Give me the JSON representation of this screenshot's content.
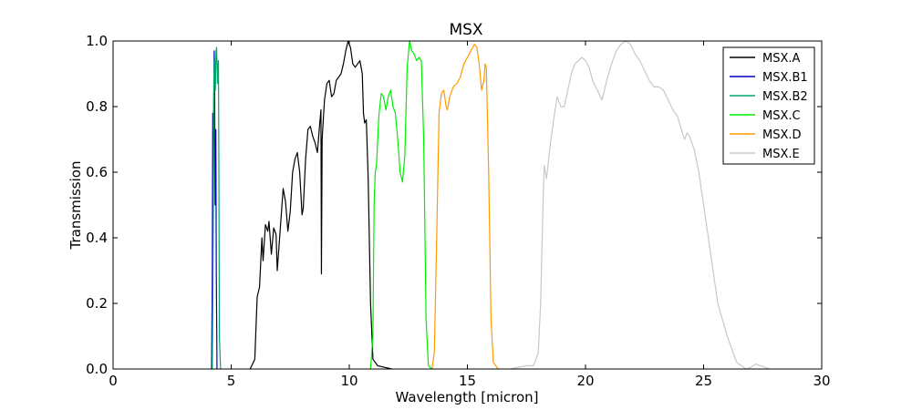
{
  "chart_data": {
    "type": "line",
    "title": "MSX",
    "xlabel": "Wavelength [micron]",
    "ylabel": "Transmission",
    "xlim": [
      0,
      30
    ],
    "ylim": [
      0,
      1.0
    ],
    "x_ticks": [
      0,
      5,
      10,
      15,
      20,
      25,
      30
    ],
    "y_ticks": [
      0.0,
      0.2,
      0.4,
      0.6,
      0.8,
      1.0
    ],
    "x_tick_labels": [
      "0",
      "5",
      "10",
      "15",
      "20",
      "25",
      "30"
    ],
    "y_tick_labels": [
      "0.0",
      "0.2",
      "0.4",
      "0.6",
      "0.8",
      "1.0"
    ],
    "grid": false,
    "legend_position": "top-right",
    "series": [
      {
        "name": "MSX.A",
        "color": "#000000",
        "points": [
          [
            5.8,
            0
          ],
          [
            6.0,
            0.03
          ],
          [
            6.1,
            0.22
          ],
          [
            6.2,
            0.25
          ],
          [
            6.3,
            0.4
          ],
          [
            6.35,
            0.33
          ],
          [
            6.45,
            0.44
          ],
          [
            6.55,
            0.42
          ],
          [
            6.6,
            0.45
          ],
          [
            6.7,
            0.35
          ],
          [
            6.8,
            0.43
          ],
          [
            6.9,
            0.41
          ],
          [
            6.95,
            0.3
          ],
          [
            7.05,
            0.4
          ],
          [
            7.15,
            0.5
          ],
          [
            7.2,
            0.55
          ],
          [
            7.3,
            0.51
          ],
          [
            7.4,
            0.42
          ],
          [
            7.5,
            0.48
          ],
          [
            7.6,
            0.6
          ],
          [
            7.7,
            0.64
          ],
          [
            7.8,
            0.66
          ],
          [
            7.9,
            0.6
          ],
          [
            8.0,
            0.47
          ],
          [
            8.05,
            0.49
          ],
          [
            8.15,
            0.64
          ],
          [
            8.25,
            0.73
          ],
          [
            8.35,
            0.74
          ],
          [
            8.45,
            0.71
          ],
          [
            8.55,
            0.69
          ],
          [
            8.65,
            0.66
          ],
          [
            8.75,
            0.75
          ],
          [
            8.8,
            0.79
          ],
          [
            8.82,
            0.29
          ],
          [
            8.85,
            0.7
          ],
          [
            8.95,
            0.82
          ],
          [
            9.05,
            0.87
          ],
          [
            9.15,
            0.88
          ],
          [
            9.25,
            0.83
          ],
          [
            9.35,
            0.84
          ],
          [
            9.45,
            0.88
          ],
          [
            9.55,
            0.89
          ],
          [
            9.65,
            0.9
          ],
          [
            9.75,
            0.93
          ],
          [
            9.85,
            0.97
          ],
          [
            9.95,
            1.0
          ],
          [
            10.05,
            0.98
          ],
          [
            10.15,
            0.93
          ],
          [
            10.25,
            0.92
          ],
          [
            10.35,
            0.93
          ],
          [
            10.45,
            0.94
          ],
          [
            10.55,
            0.9
          ],
          [
            10.6,
            0.78
          ],
          [
            10.65,
            0.75
          ],
          [
            10.72,
            0.76
          ],
          [
            10.8,
            0.58
          ],
          [
            10.9,
            0.2
          ],
          [
            11.0,
            0.03
          ],
          [
            11.2,
            0.01
          ],
          [
            11.8,
            0
          ]
        ]
      },
      {
        "name": "MSX.B1",
        "color": "#0000bf",
        "points": [
          [
            4.17,
            0
          ],
          [
            4.2,
            0.3
          ],
          [
            4.22,
            0.78
          ],
          [
            4.24,
            0.55
          ],
          [
            4.26,
            0.8
          ],
          [
            4.28,
            0.97
          ],
          [
            4.3,
            0.85
          ],
          [
            4.32,
            0.5
          ],
          [
            4.33,
            0.67
          ],
          [
            4.35,
            0.73
          ],
          [
            4.37,
            0.3
          ],
          [
            4.4,
            0
          ]
        ]
      },
      {
        "name": "MSX.B2",
        "color": "#00a86b",
        "points": [
          [
            4.2,
            0
          ],
          [
            4.24,
            0.4
          ],
          [
            4.27,
            0.9
          ],
          [
            4.3,
            0.95
          ],
          [
            4.33,
            0.85
          ],
          [
            4.36,
            0.97
          ],
          [
            4.38,
            0.98
          ],
          [
            4.4,
            0.94
          ],
          [
            4.42,
            0.87
          ],
          [
            4.44,
            0.92
          ],
          [
            4.46,
            0.94
          ],
          [
            4.48,
            0.6
          ],
          [
            4.5,
            0.1
          ],
          [
            4.55,
            0
          ]
        ]
      },
      {
        "name": "MSX.C",
        "color": "#00ee00",
        "points": [
          [
            10.9,
            0
          ],
          [
            11.0,
            0.1
          ],
          [
            11.05,
            0.5
          ],
          [
            11.1,
            0.6
          ],
          [
            11.15,
            0.62
          ],
          [
            11.25,
            0.77
          ],
          [
            11.35,
            0.84
          ],
          [
            11.45,
            0.83
          ],
          [
            11.55,
            0.79
          ],
          [
            11.65,
            0.83
          ],
          [
            11.75,
            0.85
          ],
          [
            11.85,
            0.8
          ],
          [
            11.95,
            0.78
          ],
          [
            12.05,
            0.7
          ],
          [
            12.15,
            0.6
          ],
          [
            12.25,
            0.57
          ],
          [
            12.35,
            0.65
          ],
          [
            12.45,
            0.92
          ],
          [
            12.55,
            1.0
          ],
          [
            12.65,
            0.97
          ],
          [
            12.75,
            0.96
          ],
          [
            12.85,
            0.94
          ],
          [
            12.95,
            0.95
          ],
          [
            13.05,
            0.94
          ],
          [
            13.15,
            0.7
          ],
          [
            13.25,
            0.15
          ],
          [
            13.35,
            0.01
          ],
          [
            13.5,
            0
          ]
        ]
      },
      {
        "name": "MSX.D",
        "color": "#ff9900",
        "points": [
          [
            13.5,
            0
          ],
          [
            13.6,
            0.05
          ],
          [
            13.7,
            0.4
          ],
          [
            13.8,
            0.78
          ],
          [
            13.9,
            0.84
          ],
          [
            14.0,
            0.85
          ],
          [
            14.1,
            0.8
          ],
          [
            14.15,
            0.79
          ],
          [
            14.25,
            0.83
          ],
          [
            14.4,
            0.86
          ],
          [
            14.55,
            0.87
          ],
          [
            14.7,
            0.89
          ],
          [
            14.85,
            0.93
          ],
          [
            15.0,
            0.95
          ],
          [
            15.15,
            0.97
          ],
          [
            15.3,
            0.99
          ],
          [
            15.4,
            0.98
          ],
          [
            15.5,
            0.93
          ],
          [
            15.6,
            0.85
          ],
          [
            15.7,
            0.88
          ],
          [
            15.75,
            0.93
          ],
          [
            15.8,
            0.92
          ],
          [
            15.9,
            0.6
          ],
          [
            16.0,
            0.15
          ],
          [
            16.1,
            0.02
          ],
          [
            16.3,
            0
          ]
        ]
      },
      {
        "name": "MSX.E",
        "color": "#c8c8c8",
        "points": [
          [
            16.8,
            0
          ],
          [
            17.5,
            0.01
          ],
          [
            17.8,
            0.01
          ],
          [
            18.0,
            0.05
          ],
          [
            18.1,
            0.2
          ],
          [
            18.2,
            0.5
          ],
          [
            18.25,
            0.62
          ],
          [
            18.35,
            0.58
          ],
          [
            18.5,
            0.68
          ],
          [
            18.65,
            0.76
          ],
          [
            18.8,
            0.83
          ],
          [
            18.95,
            0.8
          ],
          [
            19.1,
            0.8
          ],
          [
            19.25,
            0.85
          ],
          [
            19.4,
            0.9
          ],
          [
            19.55,
            0.93
          ],
          [
            19.7,
            0.94
          ],
          [
            19.85,
            0.95
          ],
          [
            20.0,
            0.94
          ],
          [
            20.15,
            0.92
          ],
          [
            20.3,
            0.88
          ],
          [
            20.5,
            0.85
          ],
          [
            20.7,
            0.82
          ],
          [
            20.9,
            0.88
          ],
          [
            21.1,
            0.93
          ],
          [
            21.3,
            0.97
          ],
          [
            21.5,
            0.99
          ],
          [
            21.7,
            1.0
          ],
          [
            21.9,
            0.99
          ],
          [
            22.1,
            0.96
          ],
          [
            22.3,
            0.94
          ],
          [
            22.5,
            0.91
          ],
          [
            22.7,
            0.88
          ],
          [
            22.9,
            0.86
          ],
          [
            23.1,
            0.86
          ],
          [
            23.3,
            0.85
          ],
          [
            23.5,
            0.82
          ],
          [
            23.7,
            0.79
          ],
          [
            23.9,
            0.77
          ],
          [
            24.1,
            0.72
          ],
          [
            24.2,
            0.7
          ],
          [
            24.3,
            0.72
          ],
          [
            24.4,
            0.71
          ],
          [
            24.6,
            0.67
          ],
          [
            24.8,
            0.6
          ],
          [
            25.0,
            0.5
          ],
          [
            25.2,
            0.4
          ],
          [
            25.4,
            0.3
          ],
          [
            25.6,
            0.2
          ],
          [
            25.8,
            0.15
          ],
          [
            26.0,
            0.1
          ],
          [
            26.2,
            0.06
          ],
          [
            26.4,
            0.02
          ],
          [
            26.6,
            0.01
          ],
          [
            26.8,
            0.0
          ],
          [
            27.0,
            0.005
          ],
          [
            27.2,
            0.015
          ],
          [
            27.4,
            0.01
          ],
          [
            27.6,
            0.005
          ],
          [
            27.8,
            0
          ]
        ]
      }
    ]
  }
}
